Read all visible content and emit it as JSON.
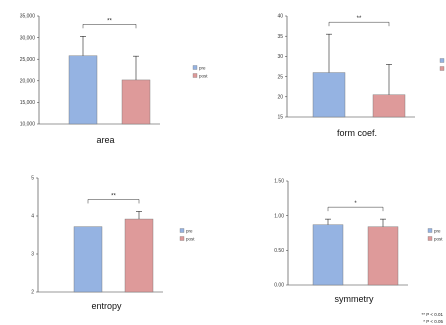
{
  "chart_data": [
    {
      "type": "bar",
      "title": "area",
      "categories": [
        "pre",
        "post"
      ],
      "values": [
        25800,
        20200
      ],
      "errors": [
        4500,
        5500
      ],
      "ylim": [
        10000,
        35000
      ],
      "yticks": [
        "10,000",
        "15,000",
        "20,000",
        "25,000",
        "30,000",
        "35,000"
      ],
      "yticks_values": [
        10000,
        15000,
        20000,
        25000,
        30000,
        35000
      ],
      "legend": [
        "pre",
        "post"
      ],
      "significance": "**"
    },
    {
      "type": "bar",
      "title": "form coef.",
      "categories": [
        "pre",
        "post"
      ],
      "values": [
        26,
        20.5
      ],
      "errors": [
        9.5,
        7.5
      ],
      "ylim": [
        15,
        40
      ],
      "yticks": [
        "15",
        "20",
        "25",
        "30",
        "35",
        "40"
      ],
      "yticks_values": [
        15,
        20,
        25,
        30,
        35,
        40
      ],
      "legend": [
        "pre",
        "post"
      ],
      "significance": "**"
    },
    {
      "type": "bar",
      "title": "entropy",
      "categories": [
        "pre",
        "post"
      ],
      "values": [
        3.72,
        3.92
      ],
      "errors": [
        0,
        0.2
      ],
      "ylim": [
        2,
        5
      ],
      "yticks": [
        "2",
        "3",
        "4",
        "5"
      ],
      "yticks_values": [
        2,
        3,
        4,
        5
      ],
      "legend": [
        "pre",
        "post"
      ],
      "significance": "**"
    },
    {
      "type": "bar",
      "title": "symmetry",
      "categories": [
        "pre",
        "post"
      ],
      "values": [
        0.87,
        0.84
      ],
      "errors": [
        0.08,
        0.11
      ],
      "ylim": [
        0,
        1.5
      ],
      "yticks": [
        "0.00",
        "0.50",
        "1.00",
        "1.50"
      ],
      "yticks_values": [
        0,
        0.5,
        1.0,
        1.5
      ],
      "legend": [
        "pre",
        "post"
      ],
      "significance": "*"
    }
  ],
  "colors": {
    "pre": "#95b3e2",
    "post": "#de9a9a",
    "axis": "#333333"
  },
  "footnote": [
    "** P < 0.01",
    "* P < 0.05"
  ]
}
